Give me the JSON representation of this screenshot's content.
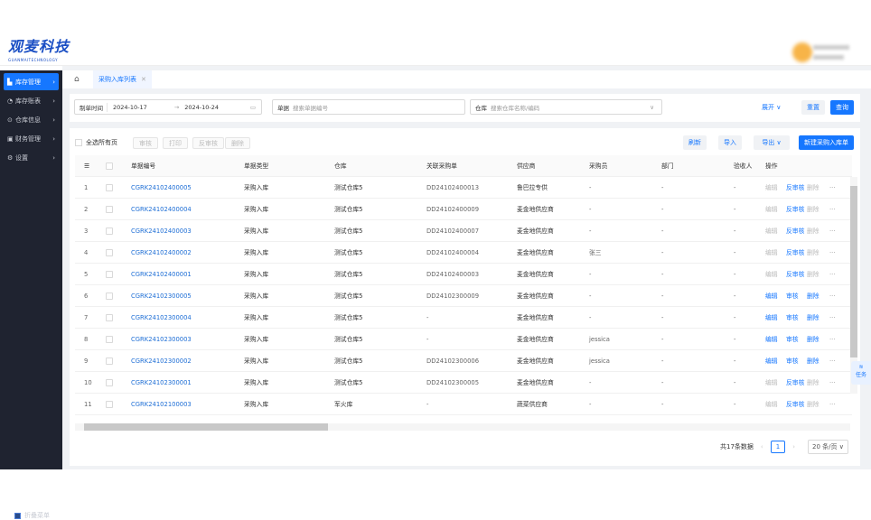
{
  "brand": {
    "name": "观麦科技",
    "sub": "GUANMAITECHNOLOGY"
  },
  "sidebar": {
    "items": [
      {
        "label": "库存管理",
        "icon": "home-icon",
        "active": true
      },
      {
        "label": "库存账表",
        "icon": "pie-chart-icon"
      },
      {
        "label": "仓库信息",
        "icon": "circle-icon"
      },
      {
        "label": "财务管理",
        "icon": "calendar-icon"
      },
      {
        "label": "设置",
        "icon": "gear-icon"
      }
    ],
    "collapse": "折叠菜单"
  },
  "tabs": {
    "home_icon": "home-icon",
    "active": "采购入库列表"
  },
  "filter": {
    "date_type": "制单时间",
    "date_start": "2024-10-17",
    "date_end": "2024-10-24",
    "doc_label": "单据",
    "doc_placeholder": "搜索单据编号",
    "wh_label": "仓库",
    "wh_placeholder": "搜索仓库名称/编码",
    "expand": "展开",
    "reset": "重置",
    "query": "查询"
  },
  "toolbar": {
    "select_all": "全选所有页",
    "audit": "审核",
    "print": "打印",
    "unaudit": "反审核",
    "delete": "删除",
    "refresh": "刷新",
    "import": "导入",
    "export": "导出",
    "create": "新建采购入库单"
  },
  "table": {
    "headers": [
      "单据编号",
      "单据类型",
      "仓库",
      "关联采购单",
      "供应商",
      "采购员",
      "部门",
      "验收人",
      "操作"
    ],
    "rows": [
      {
        "no": "1",
        "code": "CGRK24102400005",
        "type": "采购入库",
        "wh": "测试仓库5",
        "po": "DD24102400013",
        "supplier": "鲁巴拉专供",
        "buyer": "-",
        "dept": "-",
        "checker": "-",
        "ops": [
          "编辑",
          "反审核",
          "删除"
        ],
        "audited": true
      },
      {
        "no": "2",
        "code": "CGRK24102400004",
        "type": "采购入库",
        "wh": "测试仓库5",
        "po": "DD24102400009",
        "supplier": "麦金地供应商",
        "buyer": "-",
        "dept": "-",
        "checker": "-",
        "ops": [
          "编辑",
          "反审核",
          "删除"
        ],
        "audited": true
      },
      {
        "no": "3",
        "code": "CGRK24102400003",
        "type": "采购入库",
        "wh": "测试仓库5",
        "po": "DD24102400007",
        "supplier": "麦金地供应商",
        "buyer": "-",
        "dept": "-",
        "checker": "-",
        "ops": [
          "编辑",
          "反审核",
          "删除"
        ],
        "audited": true
      },
      {
        "no": "4",
        "code": "CGRK24102400002",
        "type": "采购入库",
        "wh": "测试仓库5",
        "po": "DD24102400004",
        "supplier": "麦金地供应商",
        "buyer": "张三",
        "dept": "-",
        "checker": "-",
        "ops": [
          "编辑",
          "反审核",
          "删除"
        ],
        "audited": true
      },
      {
        "no": "5",
        "code": "CGRK24102400001",
        "type": "采购入库",
        "wh": "测试仓库5",
        "po": "DD24102400003",
        "supplier": "麦金地供应商",
        "buyer": "-",
        "dept": "-",
        "checker": "-",
        "ops": [
          "编辑",
          "反审核",
          "删除"
        ],
        "audited": true
      },
      {
        "no": "6",
        "code": "CGRK24102300005",
        "type": "采购入库",
        "wh": "测试仓库5",
        "po": "DD24102300009",
        "supplier": "麦金地供应商",
        "buyer": "-",
        "dept": "-",
        "checker": "-",
        "ops": [
          "编辑",
          "审核",
          "删除"
        ],
        "audited": false
      },
      {
        "no": "7",
        "code": "CGRK24102300004",
        "type": "采购入库",
        "wh": "测试仓库5",
        "po": "-",
        "supplier": "麦金地供应商",
        "buyer": "-",
        "dept": "-",
        "checker": "-",
        "ops": [
          "编辑",
          "审核",
          "删除"
        ],
        "audited": false
      },
      {
        "no": "8",
        "code": "CGRK24102300003",
        "type": "采购入库",
        "wh": "测试仓库5",
        "po": "-",
        "supplier": "麦金地供应商",
        "buyer": "jessica",
        "dept": "-",
        "checker": "-",
        "ops": [
          "编辑",
          "审核",
          "删除"
        ],
        "audited": false
      },
      {
        "no": "9",
        "code": "CGRK24102300002",
        "type": "采购入库",
        "wh": "测试仓库5",
        "po": "DD24102300006",
        "supplier": "麦金地供应商",
        "buyer": "jessica",
        "dept": "-",
        "checker": "-",
        "ops": [
          "编辑",
          "审核",
          "删除"
        ],
        "audited": false
      },
      {
        "no": "10",
        "code": "CGRK24102300001",
        "type": "采购入库",
        "wh": "测试仓库5",
        "po": "DD24102300005",
        "supplier": "麦金地供应商",
        "buyer": "-",
        "dept": "-",
        "checker": "-",
        "ops": [
          "编辑",
          "反审核",
          "删除"
        ],
        "audited": true
      },
      {
        "no": "11",
        "code": "CGRK24102100003",
        "type": "采购入库",
        "wh": "军火库",
        "po": "-",
        "supplier": "蔬菜供应商",
        "buyer": "-",
        "dept": "-",
        "checker": "-",
        "ops": [
          "编辑",
          "反审核",
          "删除"
        ],
        "audited": true
      }
    ],
    "more": "···"
  },
  "pagination": {
    "total": "共17条数据",
    "page": "1",
    "page_size": "20 条/页"
  },
  "float": {
    "task": "任务"
  },
  "colors": {
    "primary": "#1677ff",
    "sidebar": "#1f2330"
  }
}
